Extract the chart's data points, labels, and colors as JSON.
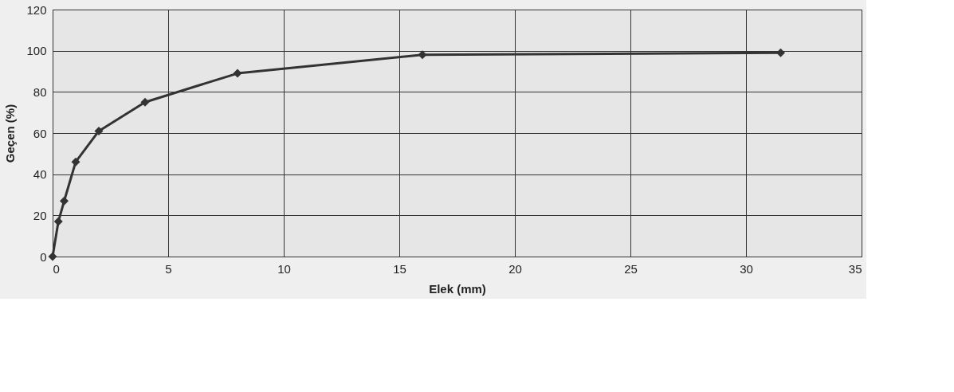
{
  "chart_data": {
    "type": "line",
    "xlabel": "Elek (mm)",
    "ylabel": "Geçen (%)",
    "x": [
      0,
      0.25,
      0.5,
      1,
      2,
      4,
      8,
      16,
      31.5
    ],
    "values": [
      0,
      17,
      27,
      46,
      61,
      75,
      89,
      98,
      99
    ],
    "color": "#333333",
    "marker": "diamond",
    "line_style": "solid",
    "xlim": [
      0,
      35
    ],
    "xticks": [
      0,
      5,
      10,
      15,
      20,
      25,
      30,
      35
    ],
    "ylim": [
      0,
      120
    ],
    "yticks": [
      0,
      20,
      40,
      60,
      80,
      100,
      120
    ],
    "grid": true
  }
}
